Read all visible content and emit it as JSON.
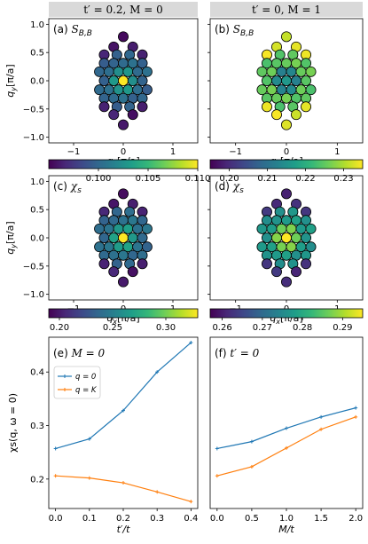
{
  "colormap_stops": [
    "#440154",
    "#482878",
    "#3e4989",
    "#31688e",
    "#26828e",
    "#1f9e89",
    "#35b779",
    "#6ece58",
    "#b5de2b",
    "#fde725"
  ],
  "column_headers": [
    "t′ = 0.2, M = 0",
    "t′ = 0, M = 1"
  ],
  "axis_labels": {
    "qx": "qx[π/a]",
    "qy": "qy[π/a]"
  },
  "chart_data": [
    {
      "type": "heatmap",
      "panel": "(a)",
      "title": "S_{B,B}",
      "column": 0,
      "row": 0,
      "xticks": [
        "−1",
        "0",
        "1"
      ],
      "yticks": [
        "1.0",
        "0.5",
        "0.0",
        "−0.5",
        "−1.0"
      ],
      "xlim": [
        -1.5,
        1.5
      ],
      "ylim": [
        -1.1,
        1.1
      ],
      "xlabel": "qx[π/a]",
      "ylabel": "qy[π/a]",
      "colorbar": {
        "range": [
          0.095,
          0.11
        ],
        "ticks": [
          0.1,
          0.105,
          0.11
        ],
        "tick_labels": [
          "0.100",
          "0.105",
          "0.110"
        ]
      },
      "center_value": 0.11,
      "inner_value": 0.103,
      "middle_value": 0.1,
      "outer_value": 0.096
    },
    {
      "type": "heatmap",
      "panel": "(b)",
      "title": "S_{B,B}",
      "column": 1,
      "row": 0,
      "xticks": [
        "−1",
        "0",
        "1"
      ],
      "yticks": [
        "1.0",
        "0.5",
        "0.0",
        "−0.5",
        "−1.0"
      ],
      "xlim": [
        -1.5,
        1.5
      ],
      "ylim": [
        -1.1,
        1.1
      ],
      "xlabel": "qx[π/a]",
      "ylabel": "",
      "colorbar": {
        "range": [
          0.195,
          0.235
        ],
        "ticks": [
          0.2,
          0.21,
          0.22,
          0.23
        ],
        "tick_labels": [
          "0.20",
          "0.21",
          "0.22",
          "0.23"
        ]
      },
      "center_value": 0.215,
      "inner_value": 0.214,
      "middle_value": 0.225,
      "outer_value": 0.233
    },
    {
      "type": "heatmap",
      "panel": "(c)",
      "title": "χ_s",
      "column": 0,
      "row": 1,
      "xticks": [
        "−1",
        "0",
        "1"
      ],
      "yticks": [
        "1.0",
        "0.5",
        "0.0",
        "−0.5",
        "−1.0"
      ],
      "xlim": [
        -1.5,
        1.5
      ],
      "ylim": [
        -1.1,
        1.1
      ],
      "xlabel": "qx[π/a]",
      "ylabel": "qy[π/a]",
      "colorbar": {
        "range": [
          0.19,
          0.33
        ],
        "ticks": [
          0.2,
          0.25,
          0.3
        ],
        "tick_labels": [
          "0.20",
          "0.25",
          "0.30"
        ]
      },
      "center_value": 0.33,
      "inner_value": 0.27,
      "middle_value": 0.24,
      "outer_value": 0.2
    },
    {
      "type": "heatmap",
      "panel": "(d)",
      "title": "χ_s",
      "column": 1,
      "row": 1,
      "xticks": [
        "−1",
        "0",
        "1"
      ],
      "yticks": [
        "1.0",
        "0.5",
        "0.0",
        "−0.5",
        "−1.0"
      ],
      "xlim": [
        -1.5,
        1.5
      ],
      "ylim": [
        -1.1,
        1.1
      ],
      "xlabel": "qx[π/a]",
      "ylabel": "",
      "colorbar": {
        "range": [
          0.257,
          0.295
        ],
        "ticks": [
          0.26,
          0.27,
          0.28,
          0.29
        ],
        "tick_labels": [
          "0.26",
          "0.27",
          "0.28",
          "0.29"
        ]
      },
      "center_value": 0.294,
      "inner_value": 0.288,
      "middle_value": 0.277,
      "outer_value": 0.262
    },
    {
      "type": "line",
      "panel": "(e)",
      "title": "M = 0",
      "column": 0,
      "xlabel": "t′/t",
      "ylabel": "χs(q, ω = 0)",
      "xlim": [
        -0.02,
        0.42
      ],
      "ylim": [
        0.145,
        0.465
      ],
      "xticks": [
        0.0,
        0.1,
        0.2,
        0.3,
        0.4
      ],
      "xtick_labels": [
        "0.0",
        "0.1",
        "0.2",
        "0.3",
        "0.4"
      ],
      "yticks": [
        0.2,
        0.3,
        0.4
      ],
      "ytick_labels": [
        "0.2",
        "0.3",
        "0.4"
      ],
      "legend_position": "upper-left",
      "x": [
        0.0,
        0.1,
        0.2,
        0.3,
        0.4
      ],
      "series": [
        {
          "name": "q = 0",
          "color": "#1f77b4",
          "values": [
            0.257,
            0.275,
            0.328,
            0.4,
            0.455
          ]
        },
        {
          "name": "q = K",
          "color": "#ff7f0e",
          "values": [
            0.206,
            0.202,
            0.193,
            0.176,
            0.158
          ]
        }
      ]
    },
    {
      "type": "line",
      "panel": "(f)",
      "title": "t′ = 0",
      "column": 1,
      "xlabel": "M/t",
      "ylabel": "",
      "xlim": [
        -0.1,
        2.1
      ],
      "ylim": [
        0.145,
        0.465
      ],
      "xticks": [
        0.0,
        0.5,
        1.0,
        1.5,
        2.0
      ],
      "xtick_labels": [
        "0.0",
        "0.5",
        "1.0",
        "1.5",
        "2.0"
      ],
      "yticks": [],
      "ytick_labels": [],
      "x": [
        0.0,
        0.5,
        1.0,
        1.5,
        2.0
      ],
      "series": [
        {
          "color": "#1f77b4",
          "values": [
            0.257,
            0.27,
            0.295,
            0.316,
            0.333
          ]
        },
        {
          "color": "#ff7f0e",
          "values": [
            0.206,
            0.223,
            0.258,
            0.293,
            0.316
          ]
        }
      ]
    }
  ]
}
